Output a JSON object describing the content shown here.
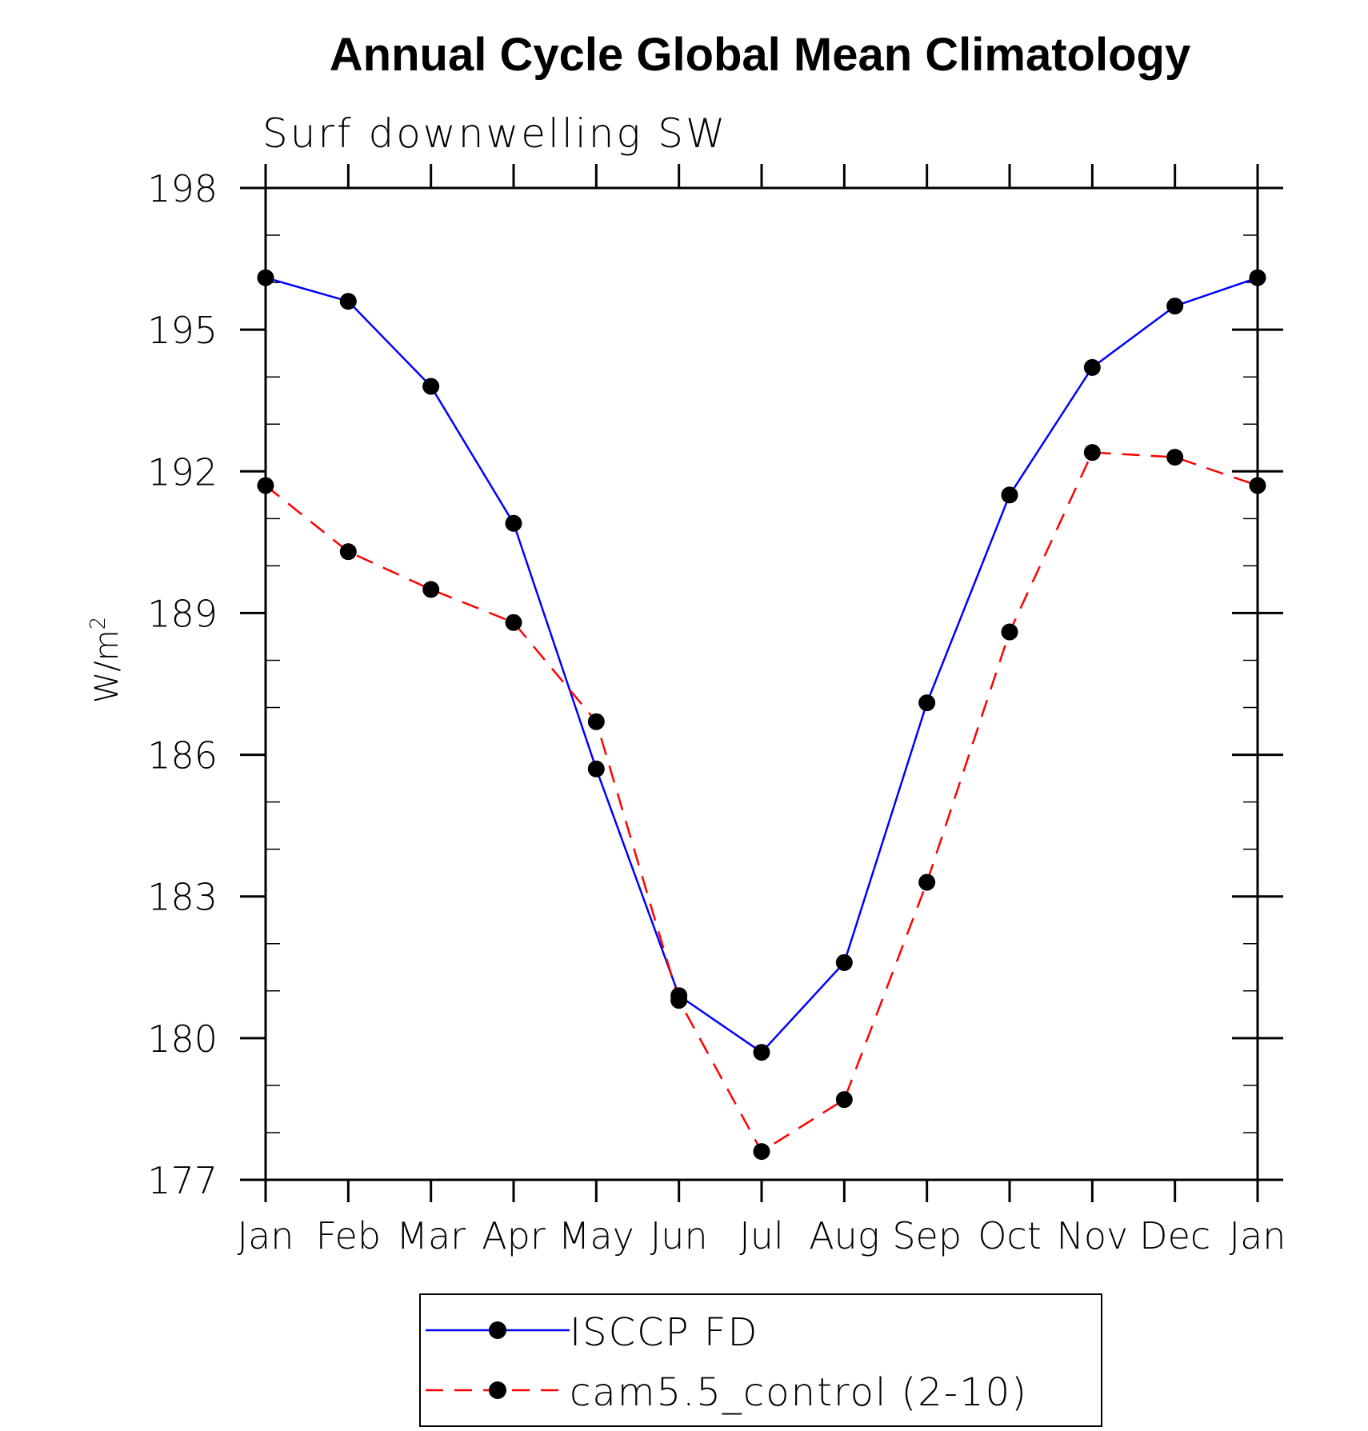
{
  "chart_data": {
    "type": "line",
    "title": "Annual Cycle Global Mean Climatology",
    "subtitle": "Surf downwelling SW",
    "ylabel": "W/m",
    "ylabel_sup": "2",
    "xlabel": "",
    "categories": [
      "Jan",
      "Feb",
      "Mar",
      "Apr",
      "May",
      "Jun",
      "Jul",
      "Aug",
      "Sep",
      "Oct",
      "Nov",
      "Dec",
      "Jan"
    ],
    "ylim": [
      177,
      198
    ],
    "yticks": [
      177,
      180,
      183,
      186,
      189,
      192,
      195,
      198
    ],
    "y_minor_step": 1,
    "grid": false,
    "legend": "bottom-center",
    "series": [
      {
        "name": "ISCCP FD",
        "color": "#0000ff",
        "style": "solid",
        "marker": "circle",
        "marker_color": "#000000",
        "values": [
          196.1,
          195.6,
          193.8,
          190.9,
          185.7,
          180.9,
          179.7,
          181.6,
          187.1,
          191.5,
          194.2,
          195.5,
          196.1
        ]
      },
      {
        "name": "cam5.5_control (2-10)",
        "color": "#ff0000",
        "style": "dashed",
        "marker": "circle",
        "marker_color": "#000000",
        "values": [
          191.7,
          190.3,
          189.5,
          188.8,
          186.7,
          180.8,
          177.6,
          178.7,
          183.3,
          188.6,
          192.4,
          192.3,
          191.7
        ]
      }
    ]
  }
}
